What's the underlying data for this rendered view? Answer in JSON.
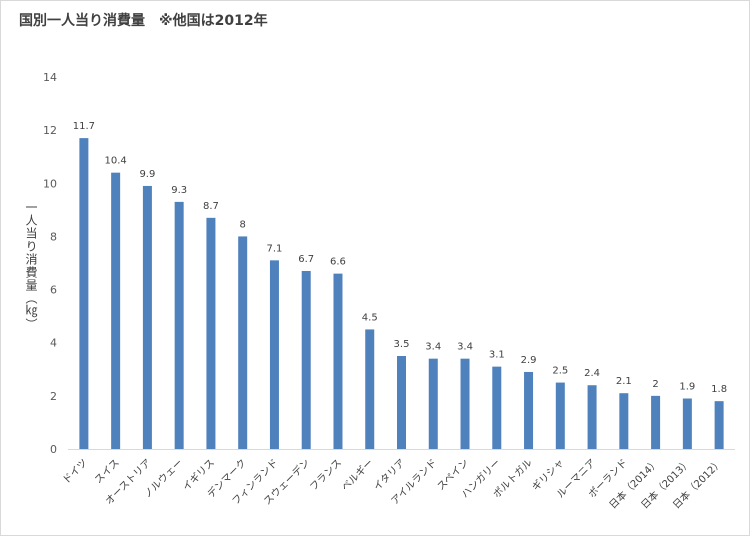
{
  "chart_data": {
    "type": "bar",
    "title": "国別一人当り消費量　※他国は2012年",
    "ylabel": "一人当り消費量（㎏）",
    "xlabel": "",
    "ylim": [
      0,
      14
    ],
    "yticks": [
      0,
      2,
      4,
      6,
      8,
      10,
      12,
      14
    ],
    "grid": false,
    "legend": "none",
    "bar_color": "#4f81bd",
    "categories": [
      "ドイツ",
      "スイス",
      "オーストリア",
      "ノルウェー",
      "イギリス",
      "デンマーク",
      "フィンランド",
      "スウェーデン",
      "フランス",
      "ベルギー",
      "イタリア",
      "アイルランド",
      "スペイン",
      "ハンガリー",
      "ポルトガル",
      "ギリシャ",
      "ルーマニア",
      "ポーランド",
      "日本（2014）",
      "日本（2013）",
      "日本（2012）"
    ],
    "values": [
      11.7,
      10.4,
      9.9,
      9.3,
      8.7,
      8,
      7.1,
      6.7,
      6.6,
      4.5,
      3.5,
      3.4,
      3.4,
      3.1,
      2.9,
      2.5,
      2.4,
      2.1,
      2,
      1.9,
      1.8
    ]
  }
}
